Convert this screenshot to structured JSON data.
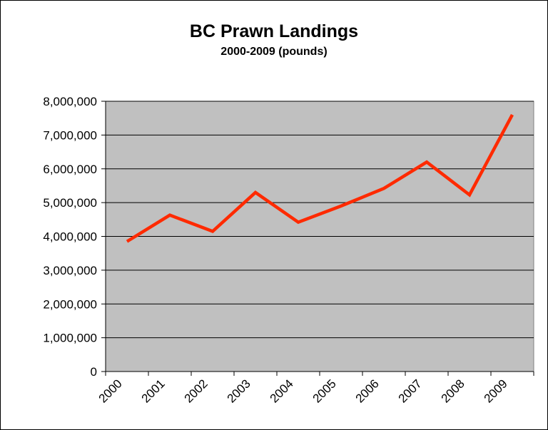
{
  "chart_data": {
    "type": "line",
    "title": "BC Prawn Landings",
    "subtitle": "2000-2009 (pounds)",
    "xlabel": "",
    "ylabel": "",
    "categories": [
      "2000",
      "2001",
      "2002",
      "2003",
      "2004",
      "2005",
      "2006",
      "2007",
      "2008",
      "2009"
    ],
    "series": [
      {
        "values": [
          3850000,
          4630000,
          4150000,
          5300000,
          4420000,
          4900000,
          5420000,
          6200000,
          5230000,
          7600000
        ],
        "color": "#ff2a00"
      }
    ],
    "ylim": [
      0,
      8000000
    ],
    "yticks": [
      "0",
      "1,000,000",
      "2,000,000",
      "3,000,000",
      "4,000,000",
      "5,000,000",
      "6,000,000",
      "7,000,000",
      "8,000,000"
    ],
    "grid": true,
    "legend": "none",
    "plot_background": "#c0c0c0"
  }
}
